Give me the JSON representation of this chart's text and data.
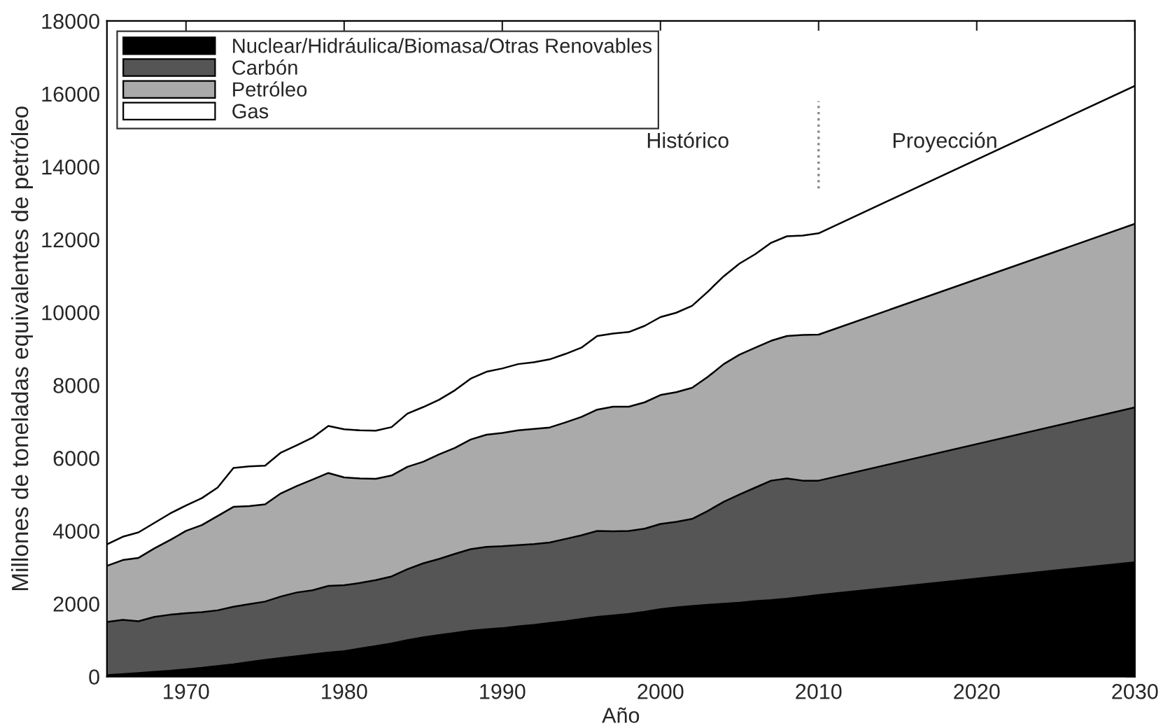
{
  "chart_data": {
    "type": "area",
    "stacked": true,
    "xlabel": "Año",
    "ylabel": "Millones de toneladas equivalentes de petróleo",
    "x": [
      1965,
      1966,
      1967,
      1968,
      1969,
      1970,
      1971,
      1972,
      1973,
      1974,
      1975,
      1976,
      1977,
      1978,
      1979,
      1980,
      1981,
      1982,
      1983,
      1984,
      1985,
      1986,
      1987,
      1988,
      1989,
      1990,
      1991,
      1992,
      1993,
      1994,
      1995,
      1996,
      1997,
      1998,
      1999,
      2000,
      2001,
      2002,
      2003,
      2004,
      2005,
      2006,
      2007,
      2008,
      2009,
      2010,
      2030
    ],
    "series": [
      {
        "name": "Nuclear/Hidráulica/Biomasa/Otras Renovables",
        "color": "#000000",
        "values": [
          40,
          70,
          100,
          130,
          160,
          200,
          240,
          290,
          340,
          400,
          460,
          510,
          560,
          610,
          660,
          700,
          770,
          840,
          910,
          1000,
          1080,
          1140,
          1200,
          1260,
          1300,
          1330,
          1380,
          1420,
          1470,
          1520,
          1580,
          1640,
          1680,
          1720,
          1780,
          1850,
          1900,
          1940,
          1970,
          2000,
          2030,
          2070,
          2100,
          2140,
          2190,
          2240,
          3140
        ]
      },
      {
        "name": "Carbón",
        "color": "#555555",
        "values": [
          1460,
          1490,
          1420,
          1510,
          1540,
          1540,
          1530,
          1530,
          1580,
          1590,
          1600,
          1690,
          1750,
          1760,
          1830,
          1810,
          1800,
          1810,
          1840,
          1950,
          2030,
          2090,
          2170,
          2240,
          2260,
          2250,
          2230,
          2220,
          2210,
          2260,
          2300,
          2360,
          2310,
          2280,
          2280,
          2340,
          2350,
          2390,
          2580,
          2800,
          2970,
          3120,
          3280,
          3300,
          3190,
          3140,
          4250
        ]
      },
      {
        "name": "Petróleo",
        "color": "#aaaaaa",
        "values": [
          1540,
          1640,
          1740,
          1880,
          2050,
          2260,
          2390,
          2590,
          2740,
          2690,
          2670,
          2830,
          2920,
          3040,
          3100,
          2960,
          2870,
          2780,
          2770,
          2810,
          2790,
          2870,
          2910,
          3010,
          3080,
          3110,
          3150,
          3160,
          3160,
          3200,
          3250,
          3330,
          3420,
          3410,
          3470,
          3540,
          3560,
          3600,
          3680,
          3780,
          3840,
          3840,
          3840,
          3910,
          4000,
          4010,
          5040
        ]
      },
      {
        "name": "Gas",
        "color": "#ffffff",
        "values": [
          590,
          640,
          700,
          700,
          730,
          700,
          740,
          780,
          1070,
          1090,
          1060,
          1120,
          1120,
          1150,
          1290,
          1320,
          1320,
          1320,
          1330,
          1460,
          1500,
          1500,
          1580,
          1670,
          1730,
          1770,
          1820,
          1830,
          1870,
          1880,
          1900,
          2020,
          2010,
          2050,
          2100,
          2140,
          2180,
          2250,
          2340,
          2410,
          2500,
          2570,
          2690,
          2740,
          2730,
          2780,
          3790
        ]
      },
      {
        "type": "line",
        "color": "#888888",
        "line_style": "dotted",
        "x": [
          2010,
          2010
        ],
        "values": [
          13400,
          15800
        ]
      }
    ],
    "annotations": [
      "Histórico",
      "Proyección"
    ],
    "xlim": [
      1965,
      2030
    ],
    "xticks": [
      1970,
      1980,
      1990,
      2000,
      2010,
      2020,
      2030
    ],
    "ylim": [
      0,
      18000
    ],
    "yticks": [
      0,
      2000,
      4000,
      6000,
      8000,
      10000,
      12000,
      14000,
      16000,
      18000
    ],
    "grid": false,
    "legend": "top left"
  }
}
